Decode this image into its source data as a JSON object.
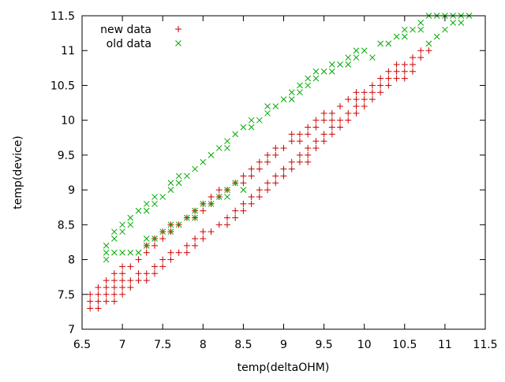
{
  "chart_data": {
    "type": "scatter",
    "title": "",
    "xlabel": "temp(deltaOHM)",
    "ylabel": "temp(device)",
    "xlim": [
      6.5,
      11.5
    ],
    "ylim": [
      7,
      11.5
    ],
    "xticks": [
      6.5,
      7,
      7.5,
      8,
      8.5,
      9,
      9.5,
      10,
      10.5,
      11,
      11.5
    ],
    "yticks": [
      7,
      7.5,
      8,
      8.5,
      9,
      9.5,
      10,
      10.5,
      11,
      11.5
    ],
    "grid": false,
    "legend_position": "top-left",
    "series": [
      {
        "name": "new data",
        "marker": "plus",
        "color": "#cc0000",
        "points": [
          [
            6.6,
            7.3
          ],
          [
            6.6,
            7.4
          ],
          [
            6.6,
            7.5
          ],
          [
            6.7,
            7.3
          ],
          [
            6.7,
            7.4
          ],
          [
            6.7,
            7.5
          ],
          [
            6.7,
            7.6
          ],
          [
            6.8,
            7.4
          ],
          [
            6.8,
            7.5
          ],
          [
            6.8,
            7.6
          ],
          [
            6.8,
            7.7
          ],
          [
            6.9,
            7.4
          ],
          [
            6.9,
            7.5
          ],
          [
            6.9,
            7.6
          ],
          [
            6.9,
            7.7
          ],
          [
            6.9,
            7.8
          ],
          [
            7.0,
            7.5
          ],
          [
            7.0,
            7.6
          ],
          [
            7.0,
            7.7
          ],
          [
            7.0,
            7.8
          ],
          [
            7.0,
            7.9
          ],
          [
            7.1,
            7.6
          ],
          [
            7.1,
            7.7
          ],
          [
            7.1,
            7.9
          ],
          [
            7.2,
            7.7
          ],
          [
            7.2,
            7.8
          ],
          [
            7.2,
            8.0
          ],
          [
            7.3,
            7.7
          ],
          [
            7.3,
            7.8
          ],
          [
            7.3,
            8.1
          ],
          [
            7.3,
            8.2
          ],
          [
            7.4,
            7.8
          ],
          [
            7.4,
            7.9
          ],
          [
            7.4,
            8.2
          ],
          [
            7.4,
            8.3
          ],
          [
            7.5,
            7.9
          ],
          [
            7.5,
            8.0
          ],
          [
            7.5,
            8.3
          ],
          [
            7.5,
            8.4
          ],
          [
            7.6,
            8.0
          ],
          [
            7.6,
            8.1
          ],
          [
            7.6,
            8.4
          ],
          [
            7.6,
            8.5
          ],
          [
            7.7,
            8.1
          ],
          [
            7.7,
            8.5
          ],
          [
            7.8,
            8.1
          ],
          [
            7.8,
            8.2
          ],
          [
            7.8,
            8.6
          ],
          [
            7.9,
            8.2
          ],
          [
            7.9,
            8.3
          ],
          [
            7.9,
            8.6
          ],
          [
            7.9,
            8.7
          ],
          [
            8.0,
            8.3
          ],
          [
            8.0,
            8.4
          ],
          [
            8.0,
            8.7
          ],
          [
            8.0,
            8.8
          ],
          [
            8.1,
            8.4
          ],
          [
            8.1,
            8.8
          ],
          [
            8.1,
            8.9
          ],
          [
            8.2,
            8.5
          ],
          [
            8.2,
            8.9
          ],
          [
            8.2,
            9.0
          ],
          [
            8.3,
            8.5
          ],
          [
            8.3,
            8.6
          ],
          [
            8.3,
            9.0
          ],
          [
            8.4,
            8.6
          ],
          [
            8.4,
            8.7
          ],
          [
            8.4,
            9.1
          ],
          [
            8.5,
            8.7
          ],
          [
            8.5,
            8.8
          ],
          [
            8.5,
            9.1
          ],
          [
            8.5,
            9.2
          ],
          [
            8.6,
            8.8
          ],
          [
            8.6,
            8.9
          ],
          [
            8.6,
            9.2
          ],
          [
            8.6,
            9.3
          ],
          [
            8.7,
            8.9
          ],
          [
            8.7,
            9.0
          ],
          [
            8.7,
            9.3
          ],
          [
            8.7,
            9.4
          ],
          [
            8.8,
            9.0
          ],
          [
            8.8,
            9.1
          ],
          [
            8.8,
            9.4
          ],
          [
            8.8,
            9.5
          ],
          [
            8.9,
            9.1
          ],
          [
            8.9,
            9.2
          ],
          [
            8.9,
            9.5
          ],
          [
            8.9,
            9.6
          ],
          [
            9.0,
            9.2
          ],
          [
            9.0,
            9.3
          ],
          [
            9.0,
            9.6
          ],
          [
            9.1,
            9.3
          ],
          [
            9.1,
            9.4
          ],
          [
            9.1,
            9.7
          ],
          [
            9.1,
            9.8
          ],
          [
            9.2,
            9.4
          ],
          [
            9.2,
            9.5
          ],
          [
            9.2,
            9.7
          ],
          [
            9.2,
            9.8
          ],
          [
            9.3,
            9.4
          ],
          [
            9.3,
            9.5
          ],
          [
            9.3,
            9.6
          ],
          [
            9.3,
            9.8
          ],
          [
            9.3,
            9.9
          ],
          [
            9.4,
            9.6
          ],
          [
            9.4,
            9.7
          ],
          [
            9.4,
            9.9
          ],
          [
            9.4,
            10.0
          ],
          [
            9.5,
            9.7
          ],
          [
            9.5,
            9.8
          ],
          [
            9.5,
            10.0
          ],
          [
            9.5,
            10.1
          ],
          [
            9.6,
            9.8
          ],
          [
            9.6,
            9.9
          ],
          [
            9.6,
            10.0
          ],
          [
            9.6,
            10.1
          ],
          [
            9.7,
            9.9
          ],
          [
            9.7,
            10.0
          ],
          [
            9.7,
            10.2
          ],
          [
            9.8,
            10.0
          ],
          [
            9.8,
            10.1
          ],
          [
            9.8,
            10.3
          ],
          [
            9.9,
            10.1
          ],
          [
            9.9,
            10.2
          ],
          [
            9.9,
            10.3
          ],
          [
            9.9,
            10.4
          ],
          [
            10.0,
            10.2
          ],
          [
            10.0,
            10.3
          ],
          [
            10.0,
            10.4
          ],
          [
            10.1,
            10.3
          ],
          [
            10.1,
            10.4
          ],
          [
            10.1,
            10.5
          ],
          [
            10.2,
            10.4
          ],
          [
            10.2,
            10.5
          ],
          [
            10.2,
            10.6
          ],
          [
            10.3,
            10.5
          ],
          [
            10.3,
            10.6
          ],
          [
            10.3,
            10.7
          ],
          [
            10.4,
            10.6
          ],
          [
            10.4,
            10.7
          ],
          [
            10.4,
            10.8
          ],
          [
            10.5,
            10.6
          ],
          [
            10.5,
            10.7
          ],
          [
            10.5,
            10.8
          ],
          [
            10.6,
            10.7
          ],
          [
            10.6,
            10.8
          ],
          [
            10.6,
            10.9
          ],
          [
            10.7,
            10.9
          ],
          [
            10.7,
            11.0
          ],
          [
            10.8,
            11.0
          ]
        ]
      },
      {
        "name": "old data",
        "marker": "cross",
        "color": "#00aa00",
        "points": [
          [
            6.8,
            8.0
          ],
          [
            6.8,
            8.1
          ],
          [
            6.8,
            8.2
          ],
          [
            6.9,
            8.1
          ],
          [
            6.9,
            8.3
          ],
          [
            6.9,
            8.4
          ],
          [
            7.0,
            8.1
          ],
          [
            7.0,
            8.4
          ],
          [
            7.0,
            8.5
          ],
          [
            7.1,
            8.1
          ],
          [
            7.1,
            8.5
          ],
          [
            7.1,
            8.6
          ],
          [
            7.2,
            8.1
          ],
          [
            7.2,
            8.7
          ],
          [
            7.3,
            8.2
          ],
          [
            7.3,
            8.3
          ],
          [
            7.3,
            8.7
          ],
          [
            7.3,
            8.8
          ],
          [
            7.4,
            8.3
          ],
          [
            7.4,
            8.8
          ],
          [
            7.4,
            8.9
          ],
          [
            7.5,
            8.4
          ],
          [
            7.5,
            8.9
          ],
          [
            7.6,
            8.4
          ],
          [
            7.6,
            8.5
          ],
          [
            7.6,
            9.0
          ],
          [
            7.6,
            9.1
          ],
          [
            7.7,
            8.5
          ],
          [
            7.7,
            9.1
          ],
          [
            7.7,
            9.2
          ],
          [
            7.8,
            8.6
          ],
          [
            7.8,
            9.2
          ],
          [
            7.9,
            8.6
          ],
          [
            7.9,
            8.7
          ],
          [
            7.9,
            9.3
          ],
          [
            8.0,
            8.8
          ],
          [
            8.0,
            9.4
          ],
          [
            8.1,
            8.8
          ],
          [
            8.1,
            9.5
          ],
          [
            8.2,
            8.9
          ],
          [
            8.2,
            9.6
          ],
          [
            8.3,
            8.9
          ],
          [
            8.3,
            9.0
          ],
          [
            8.3,
            9.6
          ],
          [
            8.3,
            9.7
          ],
          [
            8.4,
            9.1
          ],
          [
            8.4,
            9.8
          ],
          [
            8.5,
            9.0
          ],
          [
            8.5,
            9.9
          ],
          [
            8.6,
            9.9
          ],
          [
            8.6,
            10.0
          ],
          [
            8.7,
            10.0
          ],
          [
            8.8,
            10.1
          ],
          [
            8.8,
            10.2
          ],
          [
            8.9,
            10.2
          ],
          [
            9.0,
            10.3
          ],
          [
            9.1,
            10.3
          ],
          [
            9.1,
            10.4
          ],
          [
            9.2,
            10.4
          ],
          [
            9.2,
            10.5
          ],
          [
            9.3,
            10.5
          ],
          [
            9.3,
            10.6
          ],
          [
            9.4,
            10.6
          ],
          [
            9.4,
            10.7
          ],
          [
            9.5,
            10.7
          ],
          [
            9.6,
            10.7
          ],
          [
            9.6,
            10.8
          ],
          [
            9.7,
            10.8
          ],
          [
            9.8,
            10.8
          ],
          [
            9.8,
            10.9
          ],
          [
            9.9,
            10.9
          ],
          [
            9.9,
            11.0
          ],
          [
            10.0,
            11.0
          ],
          [
            10.1,
            10.9
          ],
          [
            10.2,
            11.1
          ],
          [
            10.3,
            11.1
          ],
          [
            10.4,
            11.2
          ],
          [
            10.5,
            11.2
          ],
          [
            10.5,
            11.3
          ],
          [
            10.6,
            11.3
          ],
          [
            10.7,
            11.3
          ],
          [
            10.7,
            11.4
          ],
          [
            10.8,
            11.1
          ],
          [
            10.8,
            11.5
          ],
          [
            10.9,
            11.2
          ],
          [
            10.9,
            11.5
          ],
          [
            11.0,
            11.3
          ],
          [
            11.0,
            11.5
          ],
          [
            11.1,
            11.4
          ],
          [
            11.1,
            11.5
          ],
          [
            11.2,
            11.4
          ],
          [
            11.2,
            11.5
          ],
          [
            11.3,
            11.5
          ]
        ]
      }
    ]
  }
}
